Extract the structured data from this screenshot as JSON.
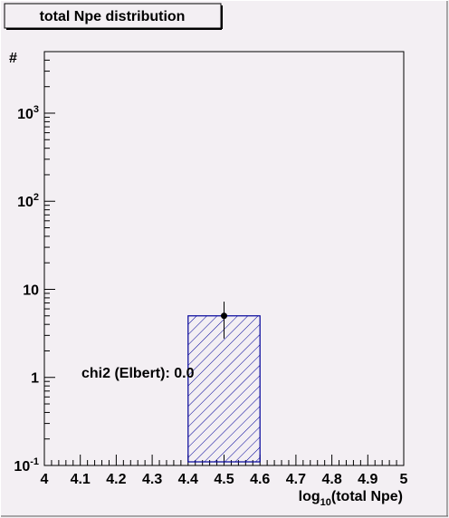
{
  "chart_data": {
    "type": "histogram",
    "title": "total Npe distribution",
    "y_label": "#",
    "x_label": {
      "base": "log",
      "sub": "10",
      "rest": "(total Npe)"
    },
    "annotation": "chi2 (Elbert): 0.0",
    "bins": [
      4.0,
      4.2,
      4.4,
      4.6,
      4.8,
      5.0
    ],
    "values": [
      0,
      0,
      5,
      0,
      0
    ],
    "color": "#000099",
    "points": {
      "x": [
        4.5
      ],
      "values": [
        5
      ],
      "errors": [
        2.24
      ]
    },
    "log_y": true,
    "xlim": [
      4,
      5
    ],
    "xticks": [
      4,
      4.1,
      4.2,
      4.3,
      4.4,
      4.5,
      4.6,
      4.7,
      4.8,
      4.9,
      5
    ],
    "ylim": [
      0.1,
      5000
    ],
    "yticks": [
      {
        "value": 0.1,
        "label": "10^-1"
      },
      1,
      10,
      {
        "value": 100,
        "label": "10^2"
      },
      {
        "value": 1000,
        "label": "10^3"
      }
    ]
  }
}
